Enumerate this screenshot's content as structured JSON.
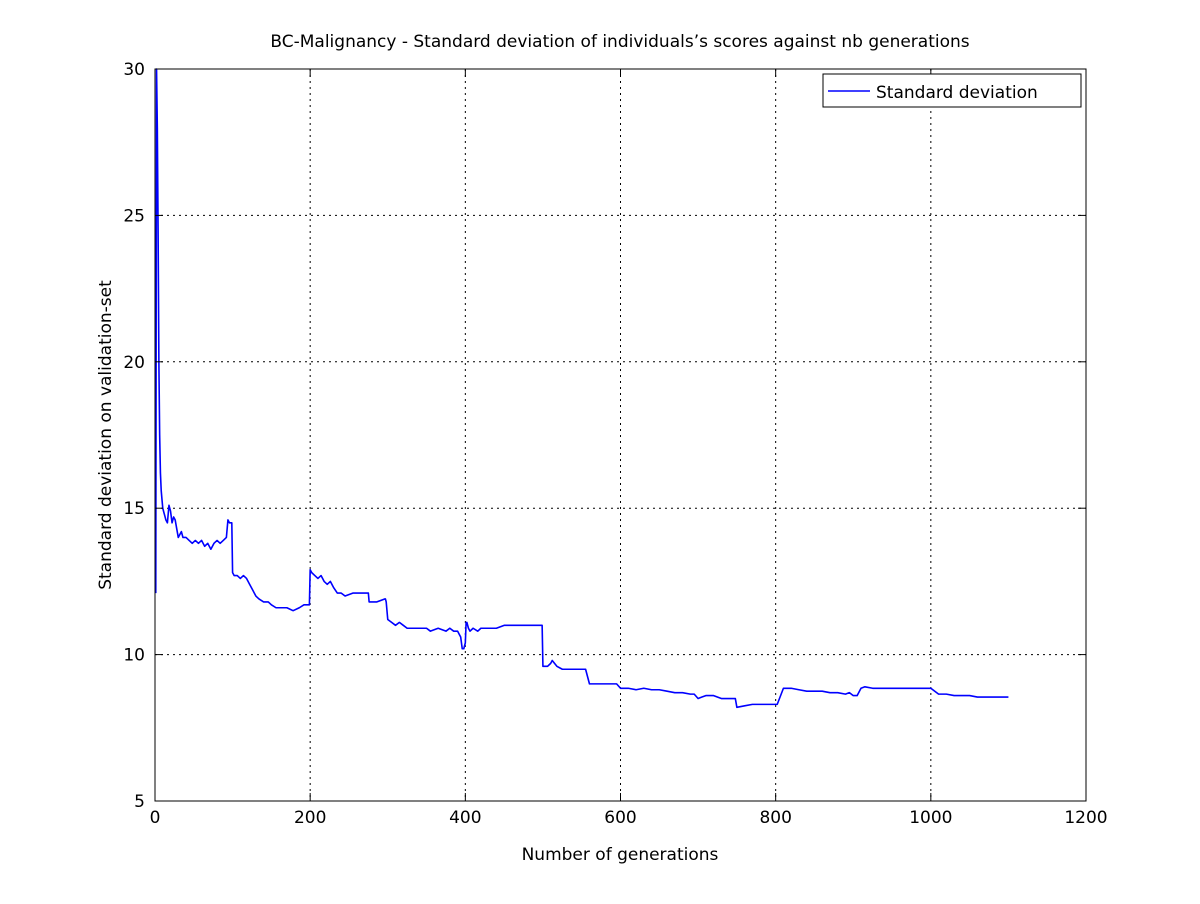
{
  "chart_data": {
    "type": "line",
    "title": "BC-Malignancy - Standard deviation of individuals’s scores against nb generations",
    "xlabel": "Number of generations",
    "ylabel": "Standard deviation on validation-set",
    "xlim": [
      0,
      1200
    ],
    "ylim": [
      5,
      30
    ],
    "xticks": [
      0,
      200,
      400,
      600,
      800,
      1000,
      1200
    ],
    "yticks": [
      5,
      10,
      15,
      20,
      25,
      30
    ],
    "xtick_labels": [
      "0",
      "200",
      "400",
      "600",
      "800",
      "1000",
      "1200"
    ],
    "ytick_labels": [
      "5",
      "10",
      "15",
      "20",
      "25",
      "30"
    ],
    "grid": true,
    "legend_position": "top-right",
    "series": [
      {
        "name": "Standard deviation",
        "color": "#0000ff",
        "x": [
          1,
          2,
          3,
          4,
          5,
          6,
          7,
          8,
          9,
          10,
          11,
          12,
          13,
          14,
          16,
          18,
          20,
          22,
          24,
          26,
          28,
          30,
          32,
          34,
          36,
          40,
          44,
          48,
          52,
          56,
          60,
          64,
          68,
          72,
          76,
          80,
          84,
          88,
          92,
          94,
          96,
          99,
          100,
          102,
          106,
          110,
          114,
          118,
          122,
          126,
          130,
          134,
          140,
          146,
          150,
          156,
          162,
          170,
          178,
          186,
          192,
          197,
          199,
          200,
          202,
          206,
          210,
          214,
          218,
          222,
          226,
          230,
          235,
          240,
          245,
          255,
          265,
          275,
          276,
          286,
          296,
          297,
          298,
          300,
          305,
          310,
          315,
          320,
          325,
          330,
          340,
          350,
          355,
          365,
          375,
          380,
          385,
          390,
          394,
          396,
          398,
          400,
          401,
          402,
          404,
          406,
          410,
          416,
          420,
          430,
          440,
          450,
          455,
          465,
          475,
          485,
          495,
          498,
          499,
          500,
          502,
          506,
          510,
          512,
          518,
          525,
          535,
          545,
          555,
          560,
          570,
          580,
          595,
          600,
          610,
          620,
          630,
          640,
          650,
          660,
          670,
          680,
          690,
          695,
          700,
          705,
          710,
          720,
          730,
          740,
          748,
          750,
          760,
          770,
          780,
          790,
          798,
          800,
          802,
          810,
          820,
          830,
          840,
          850,
          860,
          870,
          880,
          890,
          895,
          900,
          905,
          910,
          915,
          925,
          935,
          945,
          960,
          975,
          990,
          1000,
          1010,
          1020,
          1030,
          1040,
          1050,
          1060,
          1070,
          1080,
          1090,
          1100
        ],
        "y": [
          12.1,
          30.0,
          28.0,
          24.5,
          20.0,
          17.5,
          16.2,
          15.6,
          15.3,
          15.0,
          14.9,
          14.8,
          14.7,
          14.6,
          14.5,
          15.1,
          14.9,
          14.5,
          14.7,
          14.6,
          14.3,
          14.0,
          14.1,
          14.2,
          14.0,
          14.0,
          13.9,
          13.8,
          13.9,
          13.8,
          13.9,
          13.7,
          13.8,
          13.6,
          13.8,
          13.9,
          13.8,
          13.9,
          14.0,
          14.6,
          14.5,
          14.5,
          12.8,
          12.7,
          12.7,
          12.6,
          12.7,
          12.6,
          12.4,
          12.2,
          12.0,
          11.9,
          11.8,
          11.8,
          11.7,
          11.6,
          11.6,
          11.6,
          11.5,
          11.6,
          11.7,
          11.7,
          11.7,
          12.9,
          12.8,
          12.7,
          12.6,
          12.7,
          12.5,
          12.4,
          12.5,
          12.3,
          12.1,
          12.1,
          12.0,
          12.1,
          12.1,
          12.1,
          11.8,
          11.8,
          11.9,
          11.9,
          11.8,
          11.2,
          11.1,
          11.0,
          11.1,
          11.0,
          10.9,
          10.9,
          10.9,
          10.9,
          10.8,
          10.9,
          10.8,
          10.9,
          10.8,
          10.8,
          10.6,
          10.2,
          10.2,
          10.4,
          11.1,
          11.1,
          10.9,
          10.8,
          10.9,
          10.8,
          10.9,
          10.9,
          10.9,
          11.0,
          11.0,
          11.0,
          11.0,
          11.0,
          11.0,
          11.0,
          11.0,
          9.6,
          9.6,
          9.6,
          9.7,
          9.8,
          9.6,
          9.5,
          9.5,
          9.5,
          9.5,
          9.0,
          9.0,
          9.0,
          9.0,
          8.85,
          8.85,
          8.8,
          8.85,
          8.8,
          8.8,
          8.75,
          8.7,
          8.7,
          8.65,
          8.65,
          8.5,
          8.55,
          8.6,
          8.6,
          8.5,
          8.5,
          8.5,
          8.2,
          8.25,
          8.3,
          8.3,
          8.3,
          8.3,
          8.3,
          8.3,
          8.85,
          8.85,
          8.8,
          8.75,
          8.75,
          8.75,
          8.7,
          8.7,
          8.65,
          8.7,
          8.6,
          8.6,
          8.85,
          8.9,
          8.85,
          8.85,
          8.85,
          8.85,
          8.85,
          8.85,
          8.85,
          8.65,
          8.65,
          8.6,
          8.6,
          8.6,
          8.55,
          8.55,
          8.55,
          8.55,
          8.55
        ]
      }
    ]
  }
}
